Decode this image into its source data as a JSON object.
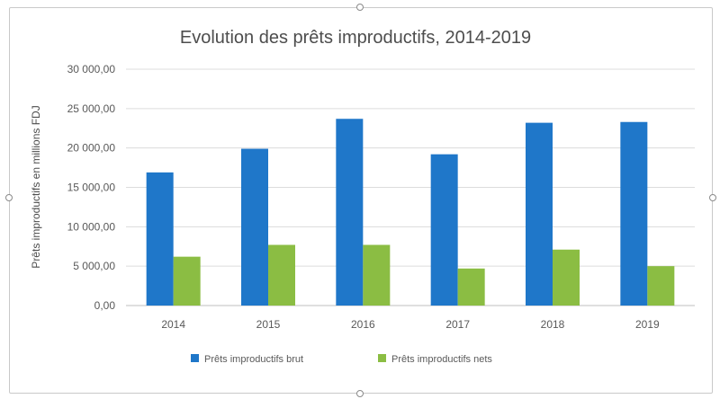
{
  "chart_data": {
    "type": "bar",
    "title": "Evolution des prêts improductifs, 2014-2019",
    "xlabel": "",
    "ylabel": "Prêts improductifs en millions FDJ",
    "categories": [
      "2014",
      "2015",
      "2016",
      "2017",
      "2018",
      "2019"
    ],
    "ylim": [
      0,
      30000
    ],
    "yticks": [
      0,
      5000,
      10000,
      15000,
      20000,
      25000,
      30000
    ],
    "ytick_labels": [
      "0,00",
      "5 000,00",
      "10 000,00",
      "15 000,00",
      "20 000,00",
      "25 000,00",
      "30 000,00"
    ],
    "grid": true,
    "legend_position": "bottom",
    "series": [
      {
        "name": "Prêts improductifs brut",
        "color": "#1f77c9",
        "values": [
          16900,
          19900,
          23700,
          19200,
          23200,
          23300
        ]
      },
      {
        "name": "Prêts improductifs nets",
        "color": "#8bbd43",
        "values": [
          6200,
          7700,
          7700,
          4700,
          7100,
          5000
        ]
      }
    ]
  }
}
